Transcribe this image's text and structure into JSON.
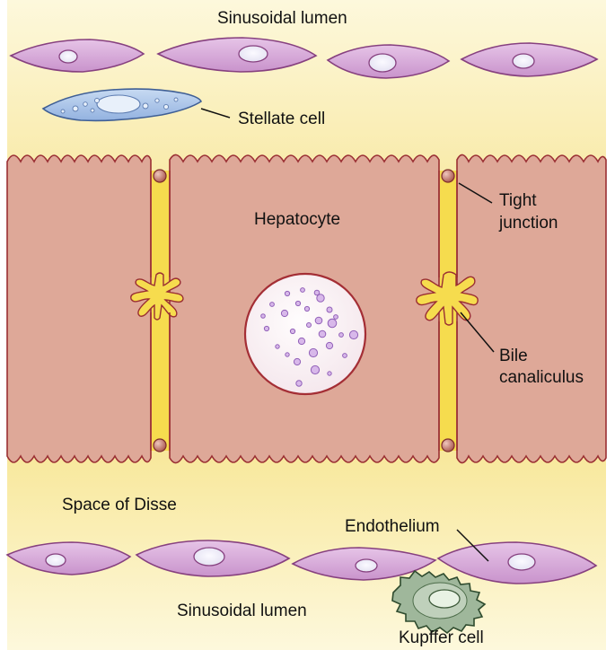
{
  "labels": {
    "sinusoidal_lumen_top": "Sinusoidal lumen",
    "stellate_cell": "Stellate cell",
    "tight_junction_line1": "Tight",
    "tight_junction_line2": "junction",
    "hepatocyte": "Hepatocyte",
    "bile_canaliculus_line1": "Bile",
    "bile_canaliculus_line2": "canaliculus",
    "space_of_disse": "Space of Disse",
    "endothelium": "Endothelium",
    "sinusoidal_lumen_bottom": "Sinusoidal lumen",
    "kupffer_cell": "Kupffer cell"
  },
  "colors": {
    "lumen_yellow": "#fbf3c2",
    "disse_yellow": "#f8e79a",
    "hepatocyte_fill": "#dea898",
    "hepatocyte_edge": "#9a2f33",
    "canaliculus_yellow": "#f6dc4e",
    "endothelial_fill": "#d6a9d8",
    "endothelial_edge": "#86407f",
    "stellate_fill": "#a9c4e8",
    "kupffer_fill": "#9fb79b",
    "nucleus_fill": "#ecebf7",
    "nucleolus_purple": "#b589d8"
  }
}
